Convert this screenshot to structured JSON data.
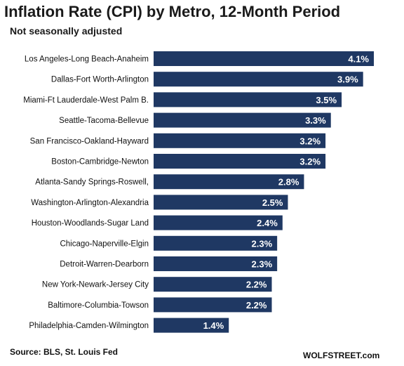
{
  "title": "Inflation Rate (CPI) by Metro, 12-Month Period",
  "subtitle": "Not seasonally adjusted",
  "source": "Source: BLS, St. Louis Fed",
  "credit": "WOLFSTREET.com",
  "colors": {
    "bar": "#1f3863",
    "value_text": "#ffffff"
  },
  "chart_data": {
    "type": "bar",
    "orientation": "horizontal",
    "categories": [
      "Los Angeles-Long Beach-Anaheim",
      "Dallas-Fort Worth-Arlington",
      "Miami-Ft Lauderdale-West Palm B.",
      "Seattle-Tacoma-Bellevue",
      "San Francisco-Oakland-Hayward",
      "Boston-Cambridge-Newton",
      "Atlanta-Sandy Springs-Roswell,",
      "Washington-Arlington-Alexandria",
      "Houston-Woodlands-Sugar Land",
      "Chicago-Naperville-Elgin",
      "Detroit-Warren-Dearborn",
      "New York-Newark-Jersey City",
      "Baltimore-Columbia-Towson",
      "Philadelphia-Camden-Wilmington"
    ],
    "values": [
      4.1,
      3.9,
      3.5,
      3.3,
      3.2,
      3.2,
      2.8,
      2.5,
      2.4,
      2.3,
      2.3,
      2.2,
      2.2,
      1.4
    ],
    "value_labels": [
      "4.1%",
      "3.9%",
      "3.5%",
      "3.3%",
      "3.2%",
      "3.2%",
      "2.8%",
      "2.5%",
      "2.4%",
      "2.3%",
      "2.3%",
      "2.2%",
      "2.2%",
      "1.4%"
    ],
    "xlim": [
      0,
      4.1
    ],
    "grid": false,
    "legend": "none"
  }
}
